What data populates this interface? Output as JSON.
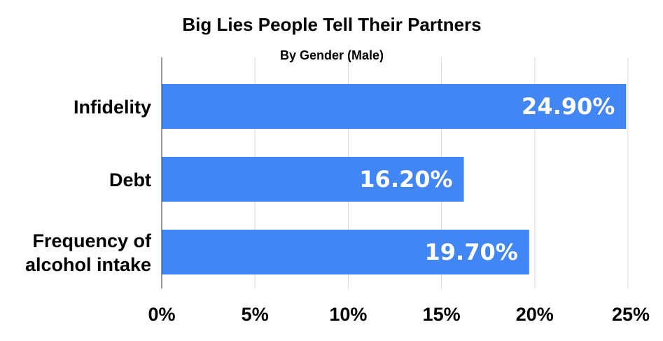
{
  "chart_data": {
    "type": "bar",
    "orientation": "horizontal",
    "title": "Big Lies People Tell Their Partners",
    "subtitle": "By Gender (Male)",
    "categories": [
      [
        "Infidelity"
      ],
      [
        "Debt"
      ],
      [
        "Frequency of",
        "alcohol intake"
      ]
    ],
    "values": [
      24.9,
      16.2,
      19.7
    ],
    "data_labels": [
      "24.90%",
      "16.20%",
      "19.70%"
    ],
    "xlim": [
      0,
      25
    ],
    "x_ticks": [
      0,
      5,
      10,
      15,
      20,
      25
    ],
    "x_tick_labels": [
      "0%",
      "5%",
      "10%",
      "15%",
      "20%",
      "25%"
    ],
    "grid": true,
    "legend": "none",
    "bar_color": "#4285f4"
  }
}
